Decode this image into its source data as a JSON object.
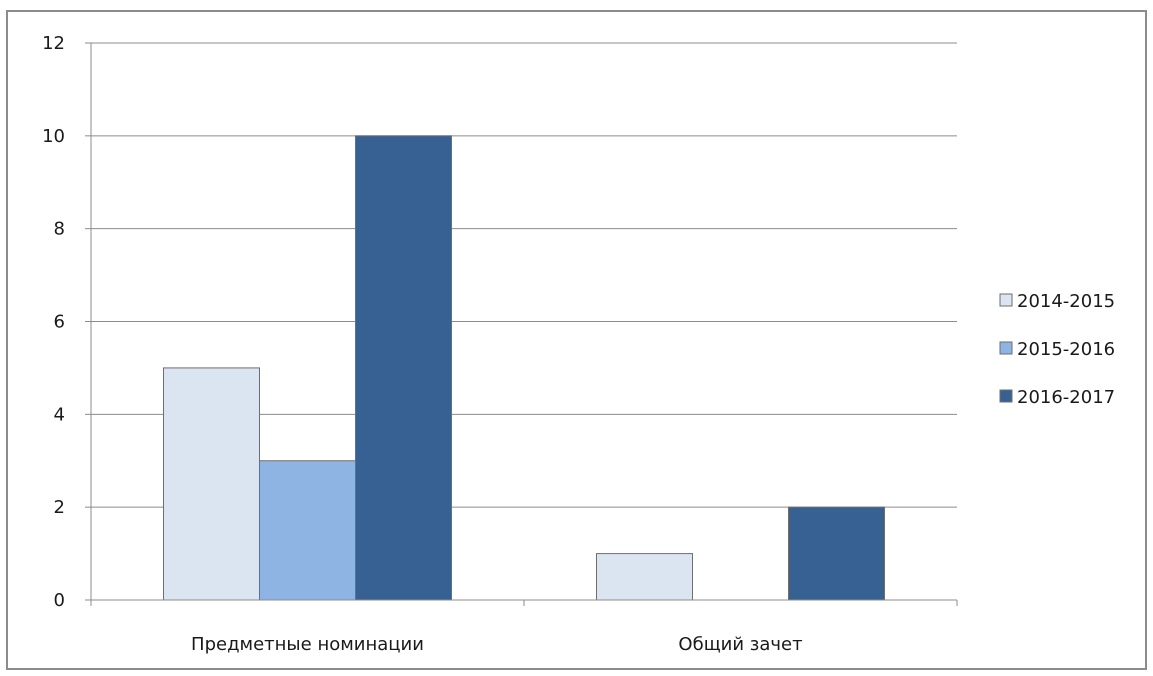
{
  "chart_data": {
    "type": "bar",
    "categories": [
      "Предметные номинации",
      "Общий зачет"
    ],
    "series": [
      {
        "name": "2014-2015",
        "values": [
          5,
          1
        ],
        "color": "#dbe4f1"
      },
      {
        "name": "2015-2016",
        "values": [
          3,
          0
        ],
        "color": "#8eb4e3"
      },
      {
        "name": "2016-2017",
        "values": [
          10,
          2
        ],
        "color": "#376193"
      }
    ],
    "ylim": [
      0,
      12
    ],
    "yticks": [
      "0",
      "2",
      "4",
      "6",
      "8",
      "10",
      "12"
    ],
    "grid": true,
    "legend_position": "right"
  }
}
